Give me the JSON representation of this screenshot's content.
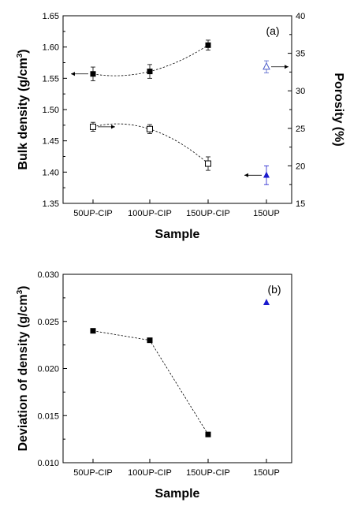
{
  "chart_data": [
    {
      "panel": "(a)",
      "type": "scatter",
      "categories": [
        "50UP-CIP",
        "100UP-CIP",
        "150UP-CIP",
        "150UP"
      ],
      "xlabel": "Sample",
      "ylabel": "Bulk density (g/cm³)",
      "ylim": [
        1.35,
        1.65
      ],
      "yticks": [
        "1.35",
        "1.40",
        "1.45",
        "1.50",
        "1.55",
        "1.60",
        "1.65"
      ],
      "y2label": "Porosity (%)",
      "y2lim": [
        15,
        40
      ],
      "y2ticks": [
        "15",
        "20",
        "25",
        "30",
        "35",
        "40"
      ],
      "grid": false,
      "series": [
        {
          "axis": "left",
          "marker": "filled-square",
          "color": "#000000",
          "connector": "dashed",
          "arrow": "left",
          "values": [
            1.557,
            1.561,
            1.603,
            null
          ],
          "errors": [
            0.011,
            0.011,
            0.008,
            null
          ]
        },
        {
          "axis": "right",
          "marker": "open-square",
          "color": "#000000",
          "connector": "dashed",
          "arrow": "right",
          "values": [
            25.2,
            24.9,
            20.3,
            null
          ],
          "errors": [
            0.6,
            0.6,
            0.9,
            null
          ]
        },
        {
          "axis": "left",
          "marker": "filled-triangle",
          "color": "#1a1acd",
          "connector": "none",
          "arrow": "left",
          "values": [
            null,
            null,
            null,
            1.395
          ],
          "errors": [
            null,
            null,
            null,
            0.015
          ]
        },
        {
          "axis": "right",
          "marker": "open-triangle",
          "color": "#4a5ac8",
          "connector": "none",
          "arrow": "right",
          "values": [
            null,
            null,
            null,
            33.2
          ],
          "errors": [
            null,
            null,
            null,
            0.8
          ]
        }
      ]
    },
    {
      "panel": "(b)",
      "type": "scatter",
      "categories": [
        "50UP-CIP",
        "100UP-CIP",
        "150UP-CIP",
        "150UP"
      ],
      "xlabel": "Sample",
      "ylabel": "Deviation of density (g/cm³)",
      "ylim": [
        0.01,
        0.03
      ],
      "yticks": [
        "0.010",
        "0.015",
        "0.020",
        "0.025",
        "0.030"
      ],
      "grid": false,
      "series": [
        {
          "marker": "filled-square",
          "color": "#000000",
          "connector": "dashed",
          "values": [
            0.024,
            0.023,
            0.013,
            null
          ]
        },
        {
          "marker": "filled-triangle",
          "color": "#1a1acd",
          "connector": "none",
          "values": [
            null,
            null,
            null,
            0.027
          ]
        }
      ]
    }
  ]
}
